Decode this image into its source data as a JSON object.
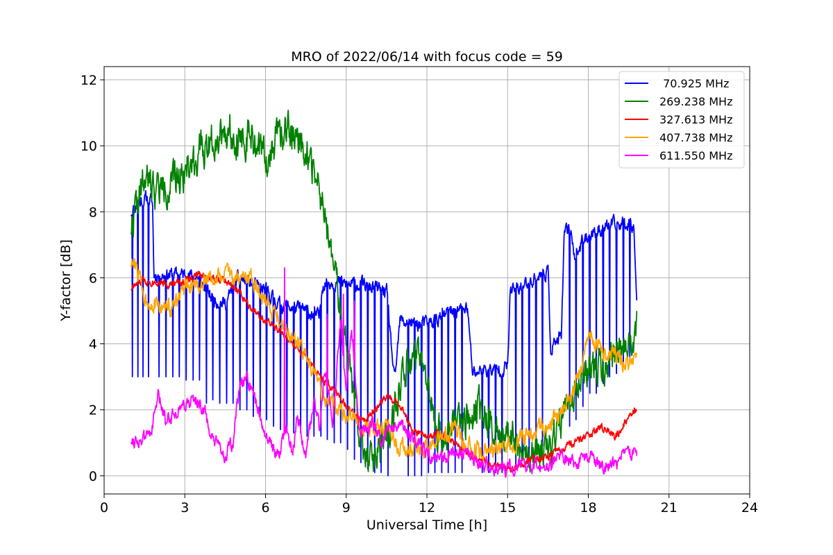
{
  "chart_data": {
    "type": "line",
    "title": "MRO of 2022/06/14 with focus code = 59",
    "xlabel": "Universal Time [h]",
    "ylabel": "Y-factor [dB]",
    "xlim": [
      0,
      24
    ],
    "ylim": [
      -0.55,
      12.4
    ],
    "xticks": [
      0,
      3,
      6,
      9,
      12,
      15,
      18,
      21,
      24
    ],
    "yticks": [
      0,
      2,
      4,
      6,
      8,
      10,
      12
    ],
    "grid": true,
    "legend_position": "top-right",
    "series": [
      {
        "name": " 70.925 MHz",
        "color": "#0000ff",
        "x": [
          1.0,
          1.3,
          1.6,
          1.8,
          1.85,
          2.0,
          2.5,
          3.0,
          3.5,
          4.0,
          4.5,
          5.0,
          5.5,
          6.0,
          6.5,
          7.0,
          7.5,
          8.0,
          8.1,
          8.5,
          9.0,
          9.5,
          10.0,
          10.5,
          10.8,
          11.0,
          11.5,
          12.0,
          12.5,
          13.0,
          13.5,
          13.7,
          14.0,
          14.5,
          15.0,
          15.1,
          15.5,
          16.0,
          16.5,
          16.6,
          17.0,
          17.1,
          17.3,
          17.5,
          18.0,
          18.5,
          19.0,
          19.5,
          19.7,
          19.8
        ],
        "y": [
          8.0,
          8.3,
          8.4,
          8.3,
          6.1,
          6.1,
          6.1,
          6.1,
          6.0,
          5.4,
          5.2,
          6.0,
          5.8,
          5.6,
          5.2,
          5.1,
          5.0,
          4.8,
          5.8,
          5.9,
          5.8,
          5.8,
          5.7,
          5.6,
          2.8,
          4.7,
          4.6,
          4.6,
          4.8,
          5.0,
          5.1,
          3.1,
          3.2,
          3.2,
          3.3,
          5.6,
          5.7,
          6.0,
          6.2,
          3.9,
          4.2,
          7.2,
          7.6,
          6.7,
          7.3,
          7.5,
          7.6,
          7.7,
          7.6,
          5.2
        ],
        "dips": [
          [
            1.05,
            3.0
          ],
          [
            1.25,
            3.0
          ],
          [
            1.45,
            3.0
          ],
          [
            1.65,
            3.0
          ],
          [
            2.05,
            3.0
          ],
          [
            2.3,
            3.0
          ],
          [
            2.55,
            3.0
          ],
          [
            2.8,
            3.0
          ],
          [
            3.05,
            2.9
          ],
          [
            3.3,
            2.9
          ],
          [
            3.55,
            2.9
          ],
          [
            3.8,
            2.2
          ],
          [
            4.05,
            2.3
          ],
          [
            4.3,
            2.2
          ],
          [
            4.55,
            2.2
          ],
          [
            4.8,
            2.2
          ],
          [
            5.05,
            2.0
          ],
          [
            5.3,
            2.0
          ],
          [
            5.55,
            1.8
          ],
          [
            5.8,
            1.8
          ],
          [
            6.05,
            1.7
          ],
          [
            6.3,
            1.5
          ],
          [
            6.55,
            1.4
          ],
          [
            6.8,
            1.4
          ],
          [
            7.05,
            1.3
          ],
          [
            7.3,
            1.3
          ],
          [
            7.55,
            1.2
          ],
          [
            7.8,
            1.2
          ],
          [
            8.05,
            1.2
          ],
          [
            8.3,
            1.1
          ],
          [
            8.55,
            1.0
          ],
          [
            8.8,
            1.0
          ],
          [
            9.05,
            0.8
          ],
          [
            9.3,
            0.5
          ],
          [
            9.55,
            0.4
          ],
          [
            9.8,
            0.2
          ],
          [
            10.05,
            0.1
          ],
          [
            10.3,
            0.1
          ],
          [
            10.55,
            0.0
          ],
          [
            11.3,
            0.0
          ],
          [
            11.55,
            0.0
          ],
          [
            11.8,
            0.0
          ],
          [
            12.05,
            0.1
          ],
          [
            12.3,
            0.1
          ],
          [
            12.55,
            0.1
          ],
          [
            12.8,
            0.1
          ],
          [
            13.05,
            0.1
          ],
          [
            13.3,
            0.1
          ],
          [
            14.05,
            0.1
          ],
          [
            14.3,
            0.1
          ],
          [
            14.55,
            0.1
          ],
          [
            14.8,
            0.1
          ],
          [
            15.3,
            0.3
          ],
          [
            15.55,
            0.5
          ],
          [
            15.8,
            0.5
          ],
          [
            16.05,
            0.8
          ],
          [
            16.3,
            0.9
          ],
          [
            17.3,
            1.5
          ],
          [
            17.55,
            1.7
          ],
          [
            17.8,
            2.1
          ],
          [
            18.05,
            2.5
          ],
          [
            18.3,
            2.5
          ],
          [
            18.55,
            2.8
          ],
          [
            18.8,
            3.0
          ],
          [
            19.05,
            3.1
          ],
          [
            19.3,
            3.3
          ],
          [
            19.55,
            3.5
          ]
        ],
        "noise": 0.18,
        "seed": 11
      },
      {
        "name": "269.238 MHz",
        "color": "#008000",
        "x": [
          1.0,
          1.5,
          2.0,
          2.5,
          3.0,
          3.5,
          4.0,
          4.5,
          5.0,
          5.5,
          6.0,
          6.5,
          7.0,
          7.3,
          7.6,
          8.0,
          8.3,
          8.7,
          9.0,
          9.3,
          9.6,
          10.0,
          10.3,
          10.6,
          11.0,
          11.3,
          11.6,
          12.0,
          12.3,
          12.6,
          13.0,
          13.5,
          14.0,
          14.5,
          15.0,
          15.5,
          16.0,
          16.5,
          17.0,
          17.5,
          18.0,
          18.5,
          19.0,
          19.5,
          19.8
        ],
        "y": [
          7.6,
          8.9,
          8.7,
          8.8,
          9.3,
          9.7,
          10.2,
          10.5,
          10.3,
          10.2,
          9.6,
          10.3,
          10.5,
          10.2,
          9.7,
          8.7,
          7.3,
          5.6,
          3.9,
          2.3,
          1.0,
          0.3,
          0.8,
          1.4,
          2.8,
          3.4,
          3.5,
          2.8,
          1.5,
          1.2,
          1.6,
          1.8,
          2.0,
          1.5,
          1.3,
          0.8,
          0.6,
          0.9,
          1.6,
          2.6,
          3.3,
          3.4,
          3.6,
          3.9,
          4.5
        ],
        "noise": 0.45,
        "seed": 22
      },
      {
        "name": "327.613 MHz",
        "color": "#ff0000",
        "x": [
          1.0,
          1.5,
          2.0,
          2.5,
          3.0,
          3.5,
          4.0,
          4.5,
          5.0,
          5.5,
          6.0,
          6.5,
          7.0,
          7.5,
          8.0,
          8.5,
          9.0,
          9.5,
          10.0,
          10.5,
          11.0,
          11.5,
          12.0,
          12.5,
          13.0,
          13.5,
          14.0,
          14.5,
          15.0,
          15.5,
          16.0,
          16.5,
          17.0,
          17.5,
          18.0,
          18.5,
          19.0,
          19.5,
          19.8
        ],
        "y": [
          5.7,
          5.9,
          5.9,
          5.8,
          5.9,
          6.1,
          6.0,
          5.9,
          5.6,
          5.1,
          4.7,
          4.4,
          4.0,
          3.6,
          3.0,
          2.6,
          2.1,
          1.7,
          1.9,
          2.4,
          2.2,
          1.3,
          1.2,
          1.3,
          1.0,
          0.7,
          0.5,
          0.3,
          0.2,
          0.3,
          0.5,
          0.6,
          0.8,
          1.0,
          1.2,
          1.5,
          1.2,
          1.8,
          2.1
        ],
        "noise": 0.1,
        "seed": 33
      },
      {
        "name": "407.738 MHz",
        "color": "#ffa500",
        "x": [
          1.0,
          1.3,
          1.5,
          2.0,
          2.5,
          3.0,
          3.5,
          4.0,
          4.5,
          5.0,
          5.5,
          6.0,
          6.5,
          7.0,
          7.5,
          8.0,
          8.5,
          9.0,
          9.5,
          10.0,
          10.5,
          11.0,
          11.5,
          12.0,
          12.5,
          13.0,
          13.5,
          14.0,
          14.5,
          15.0,
          15.5,
          16.0,
          16.5,
          17.0,
          17.5,
          18.0,
          18.5,
          19.0,
          19.5,
          19.8
        ],
        "y": [
          6.5,
          6.1,
          5.4,
          5.1,
          5.1,
          5.6,
          5.8,
          6.0,
          6.1,
          6.0,
          6.0,
          5.3,
          4.8,
          4.2,
          3.6,
          2.6,
          2.2,
          1.8,
          1.6,
          1.4,
          1.5,
          0.8,
          0.8,
          0.8,
          1.1,
          1.4,
          0.9,
          0.7,
          0.8,
          0.9,
          1.1,
          1.3,
          1.6,
          1.9,
          2.6,
          4.2,
          3.8,
          3.6,
          3.4,
          3.9
        ],
        "noise": 0.22,
        "seed": 44
      },
      {
        "name": "611.550 MHz",
        "color": "#ff00ff",
        "x": [
          1.0,
          1.5,
          1.8,
          2.0,
          2.3,
          2.7,
          3.0,
          3.5,
          3.8,
          4.0,
          4.5,
          4.8,
          5.0,
          5.3,
          5.6,
          6.0,
          6.3,
          6.5,
          6.8,
          7.0,
          7.2,
          7.5,
          7.8,
          8.0,
          8.2,
          8.5,
          8.8,
          9.0,
          9.2,
          9.5,
          9.8,
          10.0,
          10.3,
          10.6,
          11.0,
          11.5,
          12.0,
          12.5,
          13.0,
          13.5,
          14.0,
          14.5,
          15.0,
          15.5,
          16.0,
          16.5,
          17.0,
          17.5,
          18.0,
          18.5,
          19.0,
          19.5,
          19.8
        ],
        "y": [
          1.1,
          1.1,
          1.5,
          2.4,
          1.7,
          2.0,
          2.2,
          2.3,
          1.8,
          1.1,
          0.6,
          1.0,
          2.5,
          3.0,
          2.3,
          1.3,
          0.8,
          0.6,
          1.6,
          0.7,
          1.8,
          0.6,
          2.3,
          1.4,
          3.4,
          1.6,
          4.8,
          2.6,
          4.5,
          1.2,
          1.5,
          1.6,
          1.0,
          1.5,
          1.5,
          1.2,
          0.6,
          0.5,
          0.8,
          0.6,
          0.4,
          0.2,
          0.2,
          0.3,
          0.3,
          0.3,
          0.6,
          0.4,
          0.6,
          0.3,
          0.4,
          0.6,
          0.6
        ],
        "spikes": [
          [
            6.7,
            6.3
          ],
          [
            8.3,
            4.9
          ],
          [
            8.9,
            5.5
          ],
          [
            9.3,
            5.3
          ]
        ],
        "noise": 0.18,
        "seed": 55
      }
    ]
  }
}
